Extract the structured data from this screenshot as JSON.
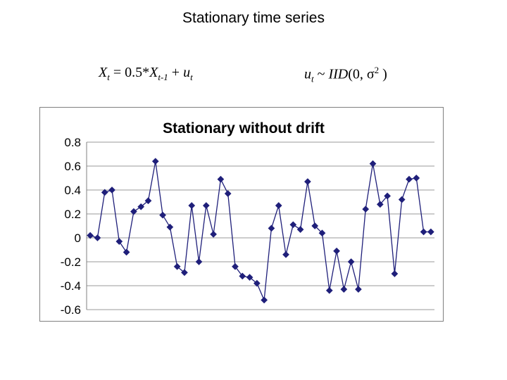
{
  "page": {
    "title": "Stationary time series"
  },
  "equations": {
    "left": {
      "x": "X",
      "x_sub": "t",
      "eq_coef": " = 0.5*",
      "x2": "X",
      "x2_sub": "t-1",
      "plus": " + ",
      "u": "u",
      "u_sub": "t"
    },
    "right": {
      "u": "u",
      "u_sub": "t",
      "tilde": " ~ ",
      "iid": "IID",
      "args": "(0, σ",
      "sup": "2",
      "close": " )"
    }
  },
  "chart_data": {
    "type": "line",
    "title": "Stationary without drift",
    "xlabel": "",
    "ylabel": "",
    "ylim": [
      -0.6,
      0.8
    ],
    "yticks": [
      "0.8",
      "0.6",
      "0.4",
      "0.2",
      "0",
      "-0.2",
      "-0.4",
      "-0.6"
    ],
    "ytick_values": [
      0.8,
      0.6,
      0.4,
      0.2,
      0,
      -0.2,
      -0.4,
      -0.6
    ],
    "grid": true,
    "legend": "none",
    "line_color": "#1f1f7a",
    "marker": "diamond",
    "series": [
      {
        "values": [
          0.02,
          0.0,
          0.38,
          0.4,
          -0.03,
          -0.12,
          0.22,
          0.26,
          0.31,
          0.64,
          0.19,
          0.09,
          -0.24,
          -0.29,
          0.27,
          -0.2,
          0.27,
          0.03,
          0.49,
          0.37,
          -0.24,
          -0.32,
          -0.33,
          -0.38,
          -0.52,
          0.08,
          0.27,
          -0.14,
          0.11,
          0.07,
          0.47,
          0.1,
          0.04,
          -0.44,
          -0.11,
          -0.43,
          -0.2,
          -0.43,
          0.24,
          0.62,
          0.28,
          0.35,
          -0.3,
          0.32,
          0.49,
          0.5,
          0.05,
          0.05
        ]
      }
    ]
  }
}
